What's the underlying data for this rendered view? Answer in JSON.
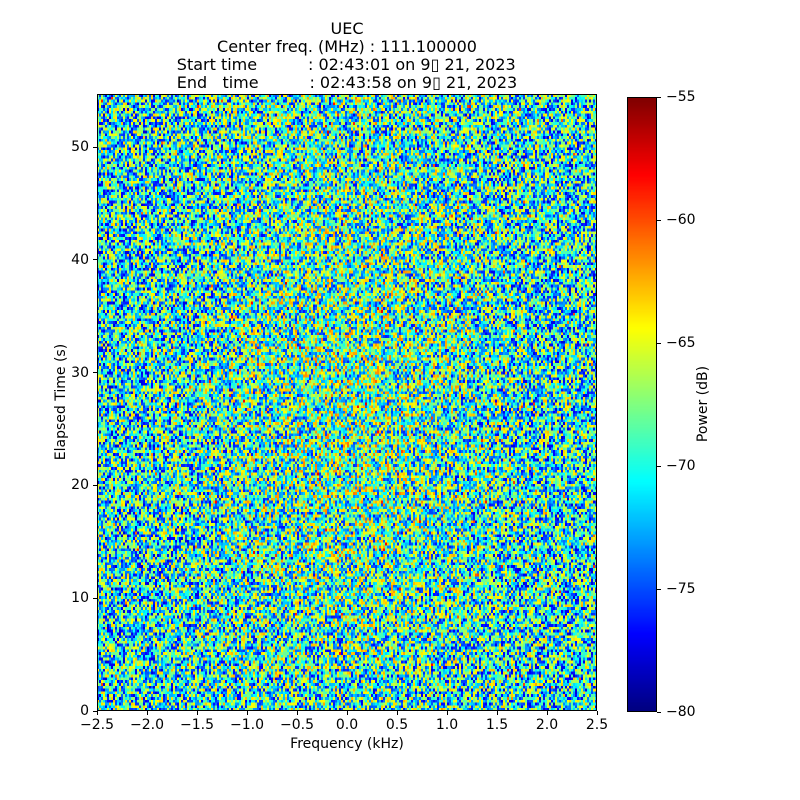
{
  "figure": {
    "background_color": "#ffffff",
    "text_color": "#000000",
    "spine_color": "#000000"
  },
  "chart_data": {
    "type": "heatmap",
    "title": "UEC",
    "header_lines": [
      "UEC",
      "Center freq. (MHz) : 111.100000",
      "Start time          : 02:43:01 on 9▯ 21, 2023",
      "End   time          : 02:43:58 on 9▯ 21, 2023"
    ],
    "center_freq_mhz": "111.100000",
    "start_time": "02:43:01 on 9▯ 21, 2023",
    "end_time": "02:43:58 on 9▯ 21, 2023",
    "xlabel": "Frequency (kHz)",
    "ylabel": "Elapsed Time (s)",
    "colorbar_label": "Power (dB)",
    "xlim": [
      -2.5,
      2.5
    ],
    "ylim": [
      0,
      54.7
    ],
    "color_range_db": [
      -80,
      -55
    ],
    "colormap": "jet",
    "x_ticks": [
      {
        "value": -2.5,
        "label": "−2.5"
      },
      {
        "value": -2.0,
        "label": "−2.0"
      },
      {
        "value": -1.5,
        "label": "−1.5"
      },
      {
        "value": -1.0,
        "label": "−1.0"
      },
      {
        "value": -0.5,
        "label": "−0.5"
      },
      {
        "value": 0.0,
        "label": "0.0"
      },
      {
        "value": 0.5,
        "label": "0.5"
      },
      {
        "value": 1.0,
        "label": "1.0"
      },
      {
        "value": 1.5,
        "label": "1.5"
      },
      {
        "value": 2.0,
        "label": "2.0"
      },
      {
        "value": 2.5,
        "label": "2.5"
      }
    ],
    "y_ticks": [
      {
        "value": 0,
        "label": "0"
      },
      {
        "value": 10,
        "label": "10"
      },
      {
        "value": 20,
        "label": "20"
      },
      {
        "value": 30,
        "label": "30"
      },
      {
        "value": 40,
        "label": "40"
      },
      {
        "value": 50,
        "label": "50"
      }
    ],
    "colorbar_ticks": [
      {
        "value": -55,
        "label": "−55"
      },
      {
        "value": -60,
        "label": "−60"
      },
      {
        "value": -65,
        "label": "−65"
      },
      {
        "value": -70,
        "label": "−70"
      },
      {
        "value": -75,
        "label": "−75"
      },
      {
        "value": -80,
        "label": "−80"
      }
    ],
    "noise_model": {
      "seed": 20230921,
      "cols": 250,
      "rows": 220,
      "base_db": -78.2,
      "span_db": 15.2,
      "center_boost_db": 1.6,
      "spike_probability": 0.02,
      "description": "Uniform broadband noise floor around −70 dB across the full band; slightly brighter (greener/yellower) toward the band center; sparse speckles up to roughly −58 dB and down to −80 dB."
    }
  }
}
